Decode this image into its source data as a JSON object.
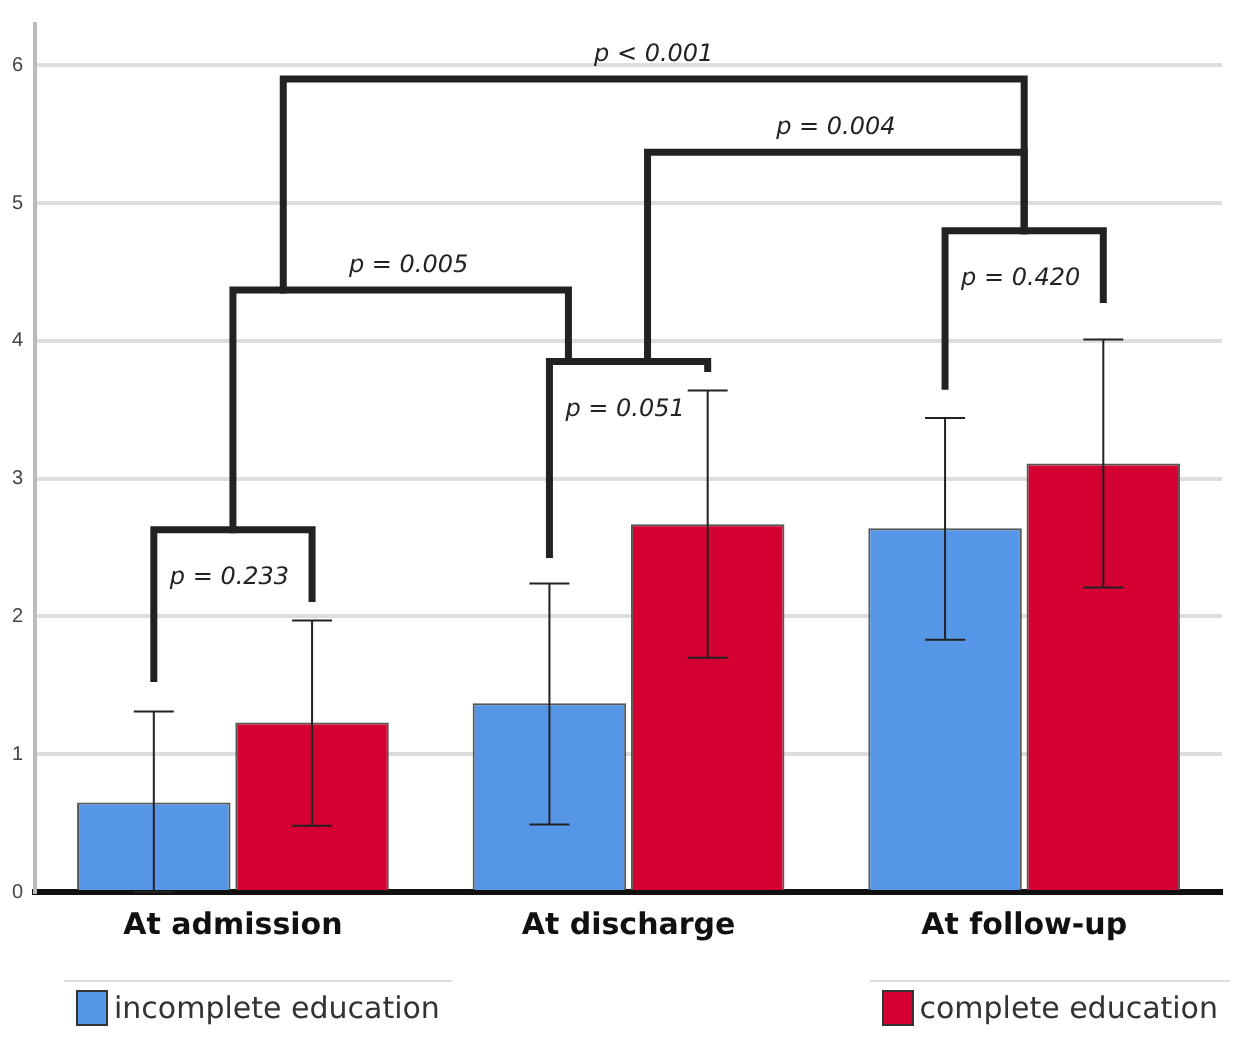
{
  "chart_data": {
    "type": "bar",
    "categories": [
      "At admission",
      "At discharge",
      "At follow-up"
    ],
    "series": [
      {
        "name": "incomplete education",
        "color": "#5596e6",
        "values": [
          0.65,
          1.37,
          2.64
        ],
        "errors": [
          [
            0,
            1.31
          ],
          [
            0.49,
            2.24
          ],
          [
            1.83,
            3.44
          ]
        ]
      },
      {
        "name": "complete education",
        "color": "#d50032",
        "values": [
          1.23,
          2.67,
          3.11
        ],
        "errors": [
          [
            0.48,
            1.97
          ],
          [
            1.7,
            3.64
          ],
          [
            2.21,
            4.01
          ]
        ]
      }
    ],
    "ylim": [
      0,
      6.3
    ],
    "yticks": [
      0,
      1,
      2,
      3,
      4,
      5,
      6
    ],
    "grid": "y",
    "legend": "bottom",
    "annotations": [
      "p = 0.233",
      "p = 0.051",
      "p = 0.420",
      "p = 0.005",
      "p = 0.004",
      "p < 0.001"
    ]
  }
}
